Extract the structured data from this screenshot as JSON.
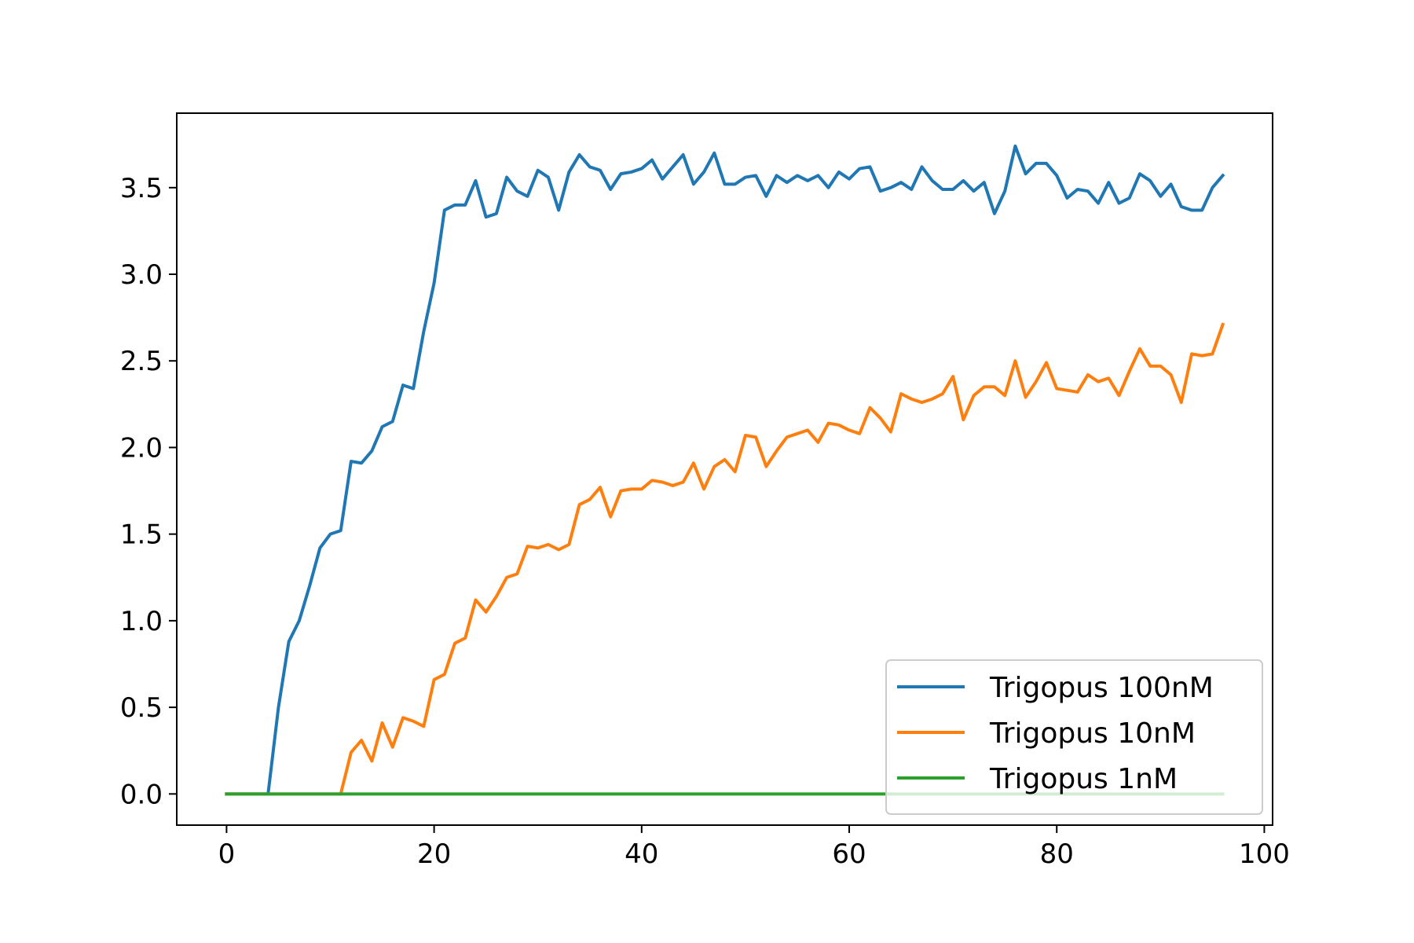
{
  "chart_data": {
    "type": "line",
    "title": "",
    "xlabel": "",
    "ylabel": "",
    "xlim": [
      -4.8,
      100.8
    ],
    "ylim": [
      -0.18,
      3.93
    ],
    "xticks": [
      0,
      20,
      40,
      60,
      80,
      100
    ],
    "yticks": [
      0.0,
      0.5,
      1.0,
      1.5,
      2.0,
      2.5,
      3.0,
      3.5
    ],
    "grid": false,
    "legend_position": "lower-right",
    "series": [
      {
        "name": "Trigopus 100nM",
        "color": "#1f77b4",
        "x": [
          0,
          1,
          2,
          3,
          4,
          5,
          6,
          7,
          8,
          9,
          10,
          11,
          12,
          13,
          14,
          15,
          16,
          17,
          18,
          19,
          20,
          21,
          22,
          23,
          24,
          25,
          26,
          27,
          28,
          29,
          30,
          31,
          32,
          33,
          34,
          35,
          36,
          37,
          38,
          39,
          40,
          41,
          42,
          43,
          44,
          45,
          46,
          47,
          48,
          49,
          50,
          51,
          52,
          53,
          54,
          55,
          56,
          57,
          58,
          59,
          60,
          61,
          62,
          63,
          64,
          65,
          66,
          67,
          68,
          69,
          70,
          71,
          72,
          73,
          74,
          75,
          76,
          77,
          78,
          79,
          80,
          81,
          82,
          83,
          84,
          85,
          86,
          87,
          88,
          89,
          90,
          91,
          92,
          93,
          94,
          95,
          96
        ],
        "y": [
          0,
          0,
          0,
          0,
          0,
          0.5,
          0.88,
          1.0,
          1.2,
          1.42,
          1.5,
          1.52,
          1.92,
          1.91,
          1.98,
          2.12,
          2.15,
          2.36,
          2.34,
          2.67,
          2.95,
          3.37,
          3.4,
          3.4,
          3.54,
          3.33,
          3.35,
          3.56,
          3.48,
          3.45,
          3.6,
          3.56,
          3.37,
          3.59,
          3.69,
          3.62,
          3.6,
          3.49,
          3.58,
          3.59,
          3.61,
          3.66,
          3.55,
          3.62,
          3.69,
          3.52,
          3.59,
          3.7,
          3.52,
          3.52,
          3.56,
          3.57,
          3.45,
          3.57,
          3.53,
          3.57,
          3.54,
          3.57,
          3.5,
          3.59,
          3.55,
          3.61,
          3.62,
          3.48,
          3.5,
          3.53,
          3.49,
          3.62,
          3.54,
          3.49,
          3.49,
          3.54,
          3.48,
          3.53,
          3.35,
          3.48,
          3.74,
          3.58,
          3.64,
          3.64,
          3.57,
          3.44,
          3.49,
          3.48,
          3.41,
          3.53,
          3.41,
          3.44,
          3.58,
          3.54,
          3.45,
          3.52,
          3.39,
          3.37,
          3.37,
          3.5,
          3.57
        ]
      },
      {
        "name": "Trigopus 10nM",
        "color": "#ff7f0e",
        "x": [
          0,
          1,
          2,
          3,
          4,
          5,
          6,
          7,
          8,
          9,
          10,
          11,
          12,
          13,
          14,
          15,
          16,
          17,
          18,
          19,
          20,
          21,
          22,
          23,
          24,
          25,
          26,
          27,
          28,
          29,
          30,
          31,
          32,
          33,
          34,
          35,
          36,
          37,
          38,
          39,
          40,
          41,
          42,
          43,
          44,
          45,
          46,
          47,
          48,
          49,
          50,
          51,
          52,
          53,
          54,
          55,
          56,
          57,
          58,
          59,
          60,
          61,
          62,
          63,
          64,
          65,
          66,
          67,
          68,
          69,
          70,
          71,
          72,
          73,
          74,
          75,
          76,
          77,
          78,
          79,
          80,
          81,
          82,
          83,
          84,
          85,
          86,
          87,
          88,
          89,
          90,
          91,
          92,
          93,
          94,
          95,
          96
        ],
        "y": [
          0,
          0,
          0,
          0,
          0,
          0,
          0,
          0,
          0,
          0,
          0,
          0,
          0.24,
          0.31,
          0.19,
          0.41,
          0.27,
          0.44,
          0.42,
          0.39,
          0.66,
          0.69,
          0.87,
          0.9,
          1.12,
          1.05,
          1.14,
          1.25,
          1.27,
          1.43,
          1.42,
          1.44,
          1.41,
          1.44,
          1.67,
          1.7,
          1.77,
          1.6,
          1.75,
          1.76,
          1.76,
          1.81,
          1.8,
          1.78,
          1.8,
          1.91,
          1.76,
          1.89,
          1.93,
          1.86,
          2.07,
          2.06,
          1.89,
          1.98,
          2.06,
          2.08,
          2.1,
          2.03,
          2.14,
          2.13,
          2.1,
          2.08,
          2.23,
          2.17,
          2.09,
          2.31,
          2.28,
          2.26,
          2.28,
          2.31,
          2.41,
          2.16,
          2.3,
          2.35,
          2.35,
          2.3,
          2.5,
          2.29,
          2.38,
          2.49,
          2.34,
          2.33,
          2.32,
          2.42,
          2.38,
          2.4,
          2.3,
          2.44,
          2.57,
          2.47,
          2.47,
          2.42,
          2.26,
          2.54,
          2.53,
          2.54,
          2.71
        ]
      },
      {
        "name": "Trigopus 1nM",
        "color": "#2ca02c",
        "x": [
          0,
          96
        ],
        "y": [
          0,
          0
        ]
      }
    ]
  }
}
